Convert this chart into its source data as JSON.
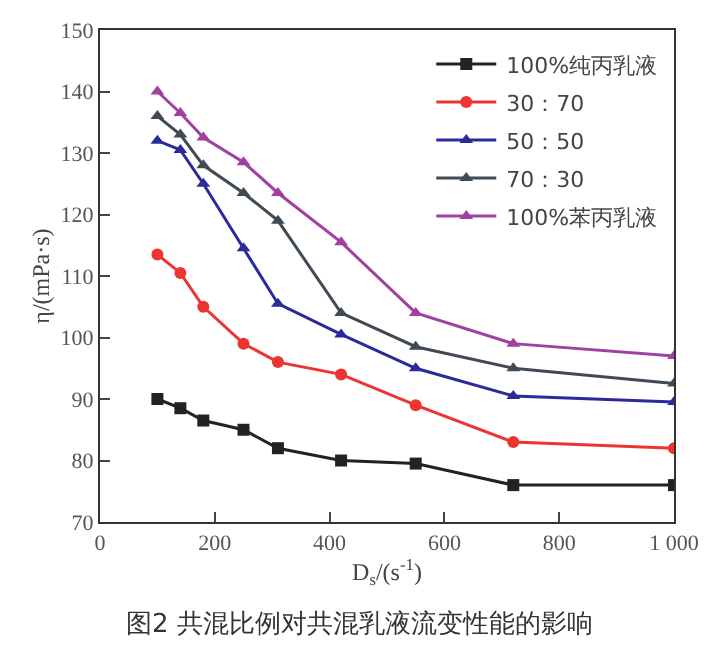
{
  "chart_data": {
    "type": "line",
    "title": "图2 共混比例对共混乳液流变性能的影响",
    "xlabel": "D$_{s}$/(s$^{-1}$)",
    "ylabel": "η/(mPa·s)",
    "x": [
      100,
      140,
      180,
      250,
      310,
      420,
      550,
      720,
      1000
    ],
    "series": [
      {
        "name": "100%纯丙乳液",
        "color": "#222222",
        "marker": "square",
        "values": [
          90,
          88.5,
          86.5,
          85,
          82,
          80,
          79.5,
          76,
          76
        ]
      },
      {
        "name": "30：70",
        "color": "#ee3333",
        "marker": "circle",
        "values": [
          113.5,
          110.5,
          105,
          99,
          96,
          94,
          89,
          83,
          82
        ]
      },
      {
        "name": "50：50",
        "color": "#2a2a9a",
        "marker": "triangle",
        "values": [
          132,
          130.5,
          125,
          114.5,
          105.5,
          100.5,
          95,
          90.5,
          89.5
        ]
      },
      {
        "name": "70：30",
        "color": "#404a55",
        "marker": "triangle",
        "values": [
          136,
          133,
          128,
          123.5,
          119,
          104,
          98.5,
          95,
          92.5
        ]
      },
      {
        "name": "100%苯丙乳液",
        "color": "#a040a0",
        "marker": "triangle",
        "values": [
          140,
          136.5,
          132.5,
          128.5,
          123.5,
          115.5,
          104,
          99,
          97
        ]
      }
    ],
    "xlim": [
      0,
      1000
    ],
    "xticks": [
      0,
      200,
      400,
      600,
      800,
      {
        "value": 1000,
        "label": "1 000"
      }
    ],
    "ylim": [
      70,
      150
    ],
    "yticks": [
      70,
      80,
      90,
      100,
      110,
      120,
      130,
      140,
      150
    ],
    "legend": "top right",
    "line_style": "solid"
  }
}
